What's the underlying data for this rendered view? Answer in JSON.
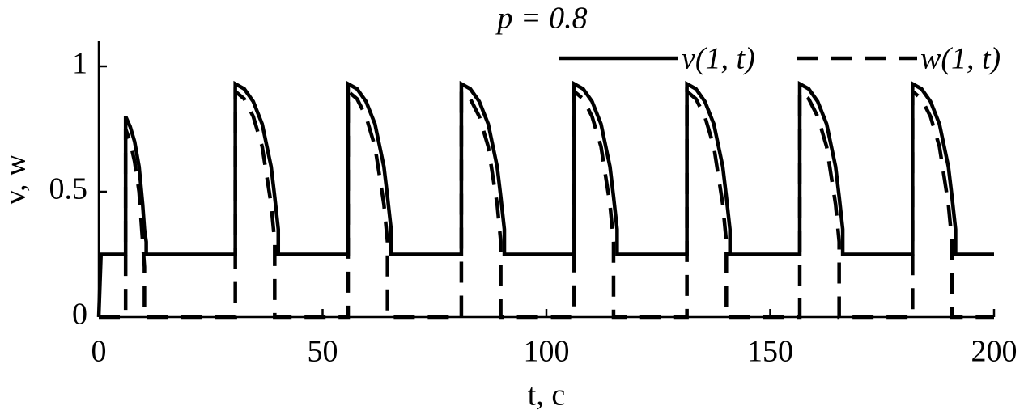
{
  "chart_data": {
    "type": "line",
    "title": "p = 0.8",
    "xlabel": "t, c",
    "ylabel": "v, w",
    "x": [
      0,
      0.5,
      6,
      6,
      7,
      8,
      9,
      9.8,
      10.2,
      10.2,
      10.6,
      10.6,
      30.5,
      30.5,
      32.5,
      34.5,
      36.5,
      38.5,
      39.3,
      39.3,
      40.1,
      40.1,
      55.7,
      55.7,
      57.7,
      59.7,
      61.7,
      63.7,
      64.5,
      64.5,
      65.3,
      65.3,
      81,
      81,
      83,
      85,
      87,
      89,
      89.8,
      89.8,
      90.6,
      90.6,
      106.2,
      106.2,
      108.2,
      110.2,
      112.2,
      114.2,
      115,
      115,
      115.8,
      115.8,
      131.4,
      131.4,
      133.4,
      135.4,
      137.4,
      139.4,
      140.2,
      140.2,
      141,
      141,
      156.6,
      156.6,
      158.6,
      160.6,
      162.6,
      164.6,
      165.4,
      165.4,
      166.2,
      166.2,
      181.8,
      181.8,
      183.8,
      185.8,
      187.8,
      189.8,
      190.6,
      190.6,
      191.4,
      191.4,
      200
    ],
    "series": [
      {
        "name": "v(1, t)",
        "color": "#000000",
        "dash": "solid",
        "values": [
          0,
          0.25,
          0.25,
          0.8,
          0.76,
          0.7,
          0.6,
          0.45,
          0.35,
          0.35,
          0.3,
          0.25,
          0.25,
          0.93,
          0.91,
          0.86,
          0.77,
          0.6,
          0.48,
          0.48,
          0.35,
          0.25,
          0.25,
          0.93,
          0.91,
          0.86,
          0.77,
          0.6,
          0.48,
          0.48,
          0.35,
          0.25,
          0.25,
          0.93,
          0.91,
          0.86,
          0.77,
          0.6,
          0.48,
          0.48,
          0.35,
          0.25,
          0.25,
          0.93,
          0.91,
          0.86,
          0.77,
          0.6,
          0.48,
          0.48,
          0.35,
          0.25,
          0.25,
          0.93,
          0.91,
          0.86,
          0.77,
          0.6,
          0.48,
          0.48,
          0.35,
          0.25,
          0.25,
          0.93,
          0.91,
          0.86,
          0.77,
          0.6,
          0.48,
          0.48,
          0.35,
          0.25,
          0.25,
          0.93,
          0.91,
          0.86,
          0.77,
          0.6,
          0.48,
          0.48,
          0.35,
          0.25,
          0.25
        ]
      },
      {
        "name": "w(1, t)",
        "color": "#000000",
        "dash": "dashed",
        "values": [
          0,
          0,
          0,
          0.75,
          0.7,
          0.62,
          0.5,
          0.3,
          0.2,
          0,
          0,
          0,
          0,
          0.9,
          0.87,
          0.8,
          0.68,
          0.45,
          0.3,
          0,
          0,
          0,
          0,
          0.9,
          0.87,
          0.8,
          0.68,
          0.45,
          0.3,
          0,
          0,
          0,
          0,
          0.9,
          0.87,
          0.8,
          0.68,
          0.45,
          0.3,
          0,
          0,
          0,
          0,
          0.9,
          0.87,
          0.8,
          0.68,
          0.45,
          0.3,
          0,
          0,
          0,
          0,
          0.9,
          0.87,
          0.8,
          0.68,
          0.45,
          0.3,
          0,
          0,
          0,
          0,
          0.9,
          0.87,
          0.8,
          0.68,
          0.45,
          0.3,
          0,
          0,
          0,
          0,
          0.9,
          0.87,
          0.8,
          0.68,
          0.45,
          0.3,
          0,
          0,
          0,
          0
        ]
      }
    ],
    "xlim": [
      0,
      200
    ],
    "xticks": [
      0,
      50,
      100,
      150,
      200
    ],
    "ylim": [
      0,
      1.1
    ],
    "yticks": [
      0,
      0.5,
      1
    ],
    "grid": false,
    "legend": "top-right"
  }
}
